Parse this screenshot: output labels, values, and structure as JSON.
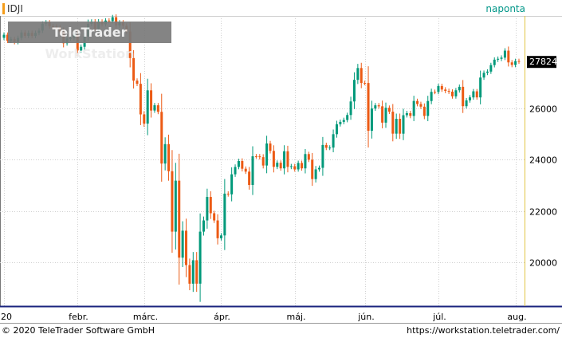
{
  "header": {
    "symbol": "IDJI",
    "period": "naponta",
    "watermark": "TeleTrader WorkStation"
  },
  "footer": {
    "copyright": "© 2020 TeleTrader Software GmbH",
    "url": "https://workstation.teletrader.com/"
  },
  "colors": {
    "up": "#00997a",
    "down": "#ec5a14",
    "last_price_bg": "#000000",
    "axis_right_line": "#e2c545",
    "grid": "#d0d0d0"
  },
  "chart_data": {
    "type": "candlestick",
    "title": "IDJI",
    "last_price_label": "27824",
    "y_ticks": [
      20000,
      22000,
      24000,
      26000
    ],
    "ylim": [
      18300,
      29600
    ],
    "x_tick_labels": [
      {
        "label": "'20",
        "index": 0
      },
      {
        "label": "febr.",
        "index": 21
      },
      {
        "label": "márc.",
        "index": 40
      },
      {
        "label": "ápr.",
        "index": 62
      },
      {
        "label": "máj.",
        "index": 83
      },
      {
        "label": "jún.",
        "index": 103
      },
      {
        "label": "júl.",
        "index": 124
      },
      {
        "label": "aug.",
        "index": 146
      }
    ],
    "grid": true,
    "closes": [
      28868,
      28634,
      28704,
      28584,
      28745,
      28956,
      28824,
      28940,
      28823,
      28940,
      29030,
      29297,
      29348,
      29196,
      29186,
      29160,
      28990,
      28535,
      28723,
      28734,
      28859,
      28256,
      28399,
      28807,
      29290,
      29380,
      29102,
      29379,
      29276,
      29423,
      29398,
      29551,
      29232,
      29348,
      29219,
      28992,
      27960,
      27081,
      26957,
      25766,
      25409,
      26703,
      25917,
      26121,
      25865,
      23851,
      24608,
      23553,
      21200,
      23185,
      20188,
      21237,
      19898,
      19173,
      20087,
      19174,
      21200,
      21636,
      22552,
      21917,
      21636,
      20943,
      21053,
      22680,
      22653,
      23433,
      23719,
      23950,
      23650,
      23537,
      23018,
      24134,
      24133,
      24101,
      23775,
      24634,
      24345,
      23724,
      23883,
      23664,
      24331,
      23723,
      23749,
      23625,
      23875,
      23664,
      24221,
      24000,
      23247,
      23625,
      23685,
      24575,
      24465,
      24474,
      24995,
      25383,
      25475,
      25548,
      25742,
      26270,
      27111,
      27572,
      26990,
      26989,
      25128,
      25995,
      26119,
      26081,
      25445,
      26024,
      25871,
      25016,
      25595,
      25015,
      25734,
      25813,
      25707,
      26288,
      26170,
      26067,
      25706,
      26287,
      26643,
      26642,
      26870,
      26734,
      26680,
      26652,
      26469,
      26705,
      26840,
      26085,
      26313,
      26428,
      26665,
      26428,
      27201,
      27386,
      27433,
      27686,
      27897,
      27931,
      27976,
      28248,
      27791,
      27692,
      27844,
      27824
    ]
  }
}
